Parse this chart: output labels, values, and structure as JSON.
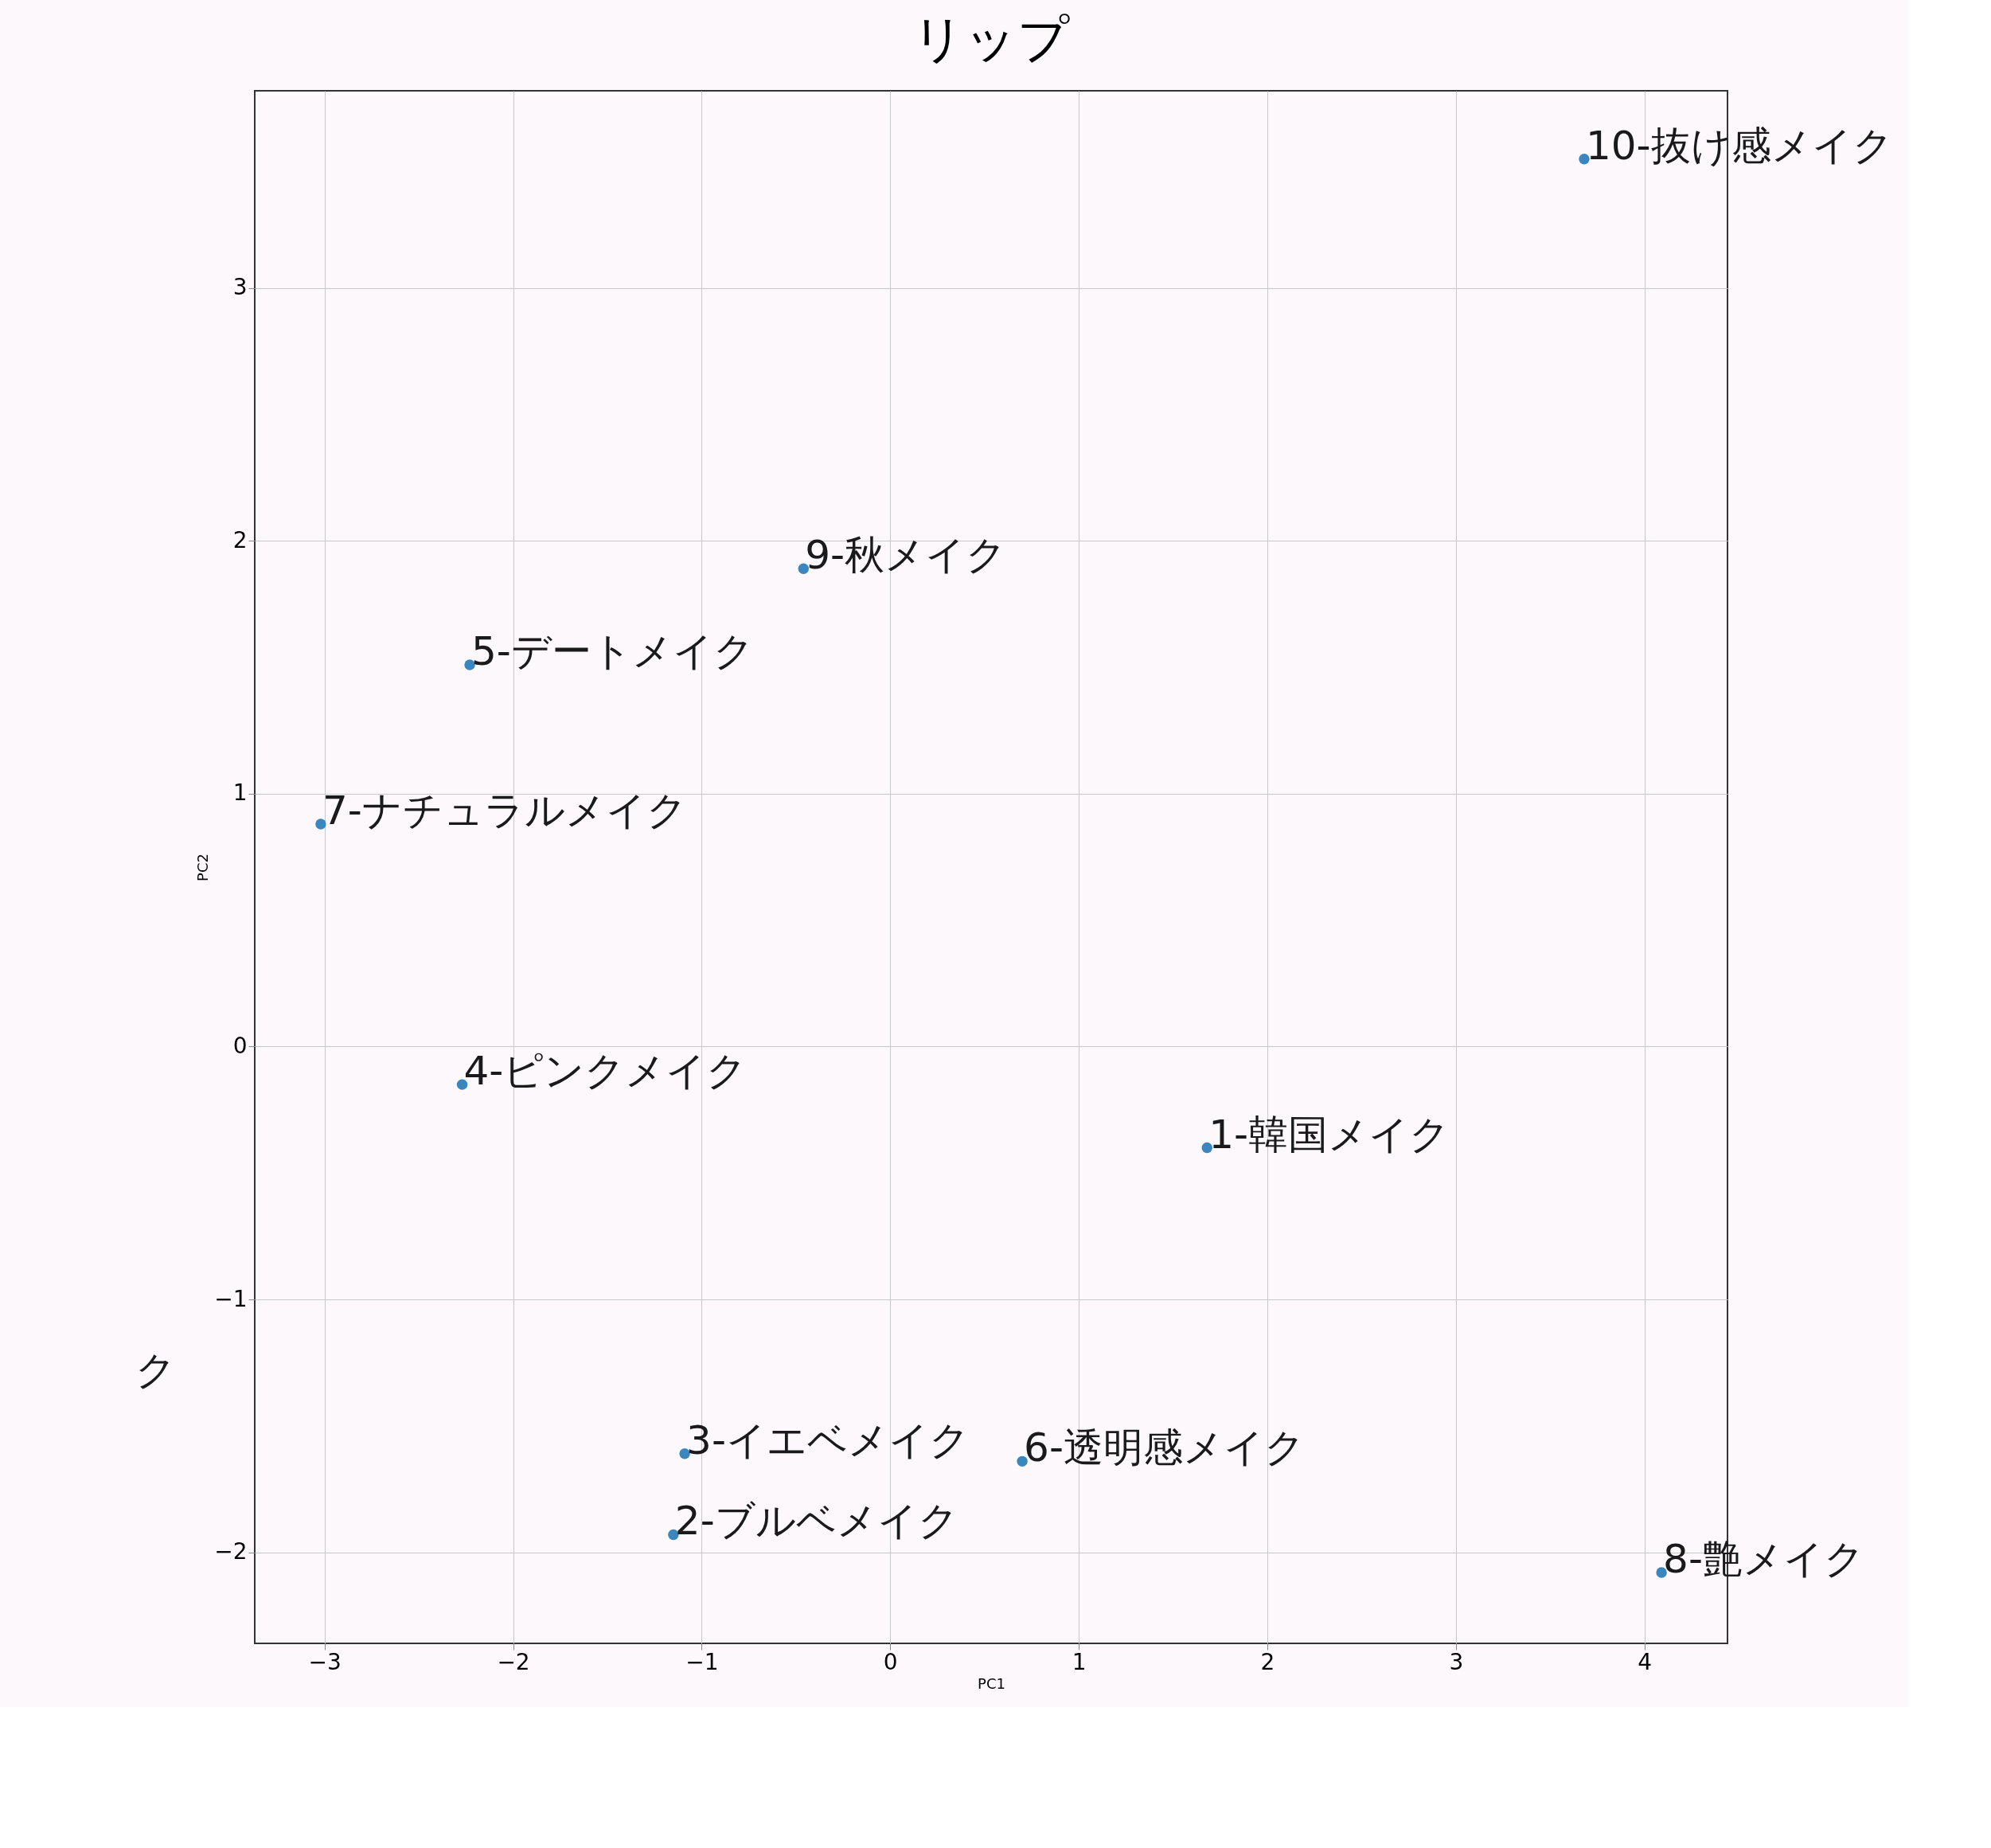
{
  "chart_data": {
    "type": "scatter",
    "title": "リップ",
    "xlabel": "PC1",
    "ylabel": "PC2",
    "x": [
      1.68,
      -1.15,
      -1.09,
      -2.27,
      -2.23,
      0.7,
      -3.02,
      4.09,
      -0.46,
      3.68
    ],
    "series": [
      {
        "color": "#3a87c0",
        "values": [
          -0.4,
          -1.93,
          -1.61,
          -0.15,
          1.51,
          -1.64,
          0.88,
          -2.08,
          1.89,
          3.51
        ]
      }
    ],
    "value_labels": [
      "1-韓国メイク",
      "2-ブルベメイク",
      "3-イエベメイク",
      "4-ピンクメイク",
      "5-デートメイク",
      "6-透明感メイク",
      "7-ナチュラルメイク",
      "8-艶メイク",
      "9-秋メイク",
      "10-抜け感メイク"
    ],
    "annotations": [
      "ク"
    ],
    "xlim": [
      -3.37,
      4.44
    ],
    "ylim": [
      -2.36,
      3.78
    ],
    "xticks": [
      -3,
      -2,
      -1,
      0,
      1,
      2,
      3,
      4
    ],
    "yticks": [
      -2,
      -1,
      0,
      1,
      2,
      3
    ],
    "grid": true,
    "marker": "circle"
  }
}
